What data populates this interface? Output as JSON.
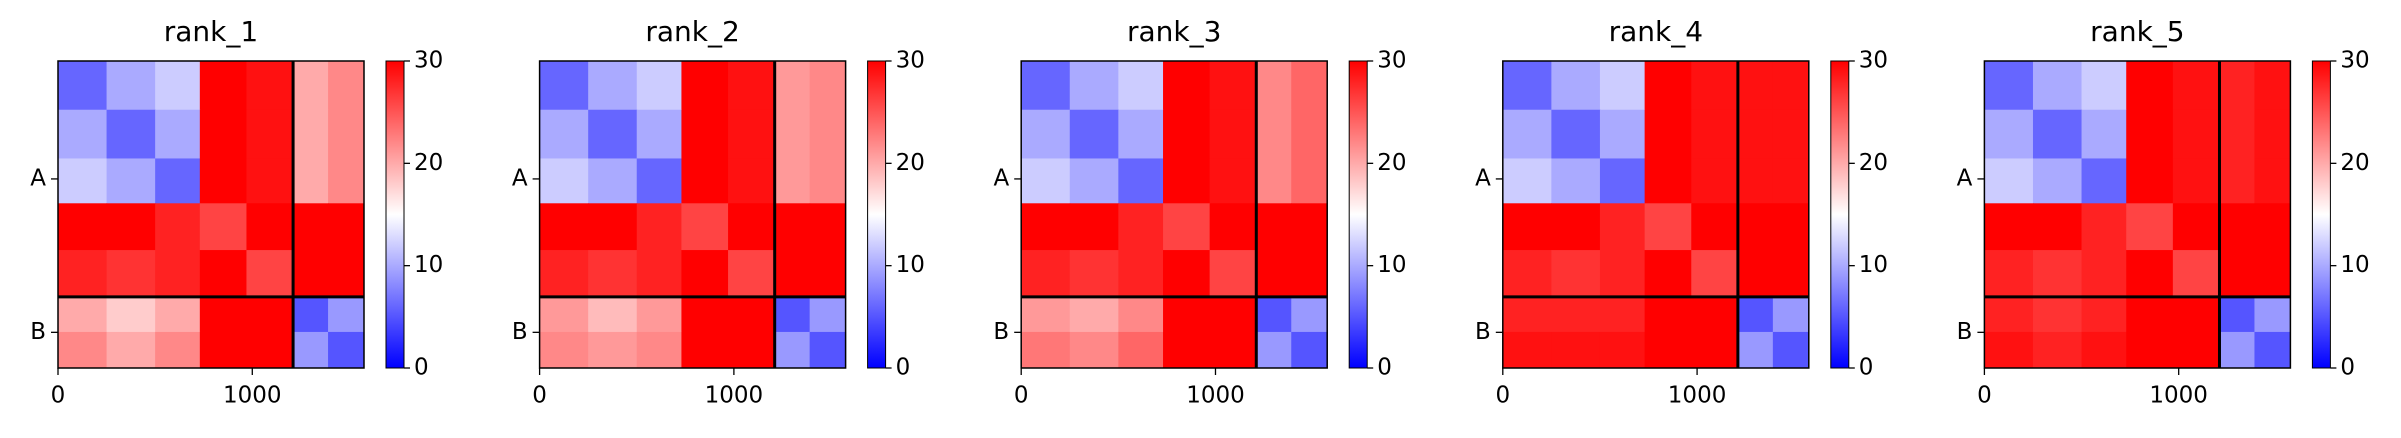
{
  "chart_data": [
    {
      "type": "heatmap",
      "title": "rank_1",
      "colormap": "bwr",
      "clim": [
        0,
        30
      ],
      "cticks": [
        0,
        10,
        20,
        30
      ],
      "xlim": [
        0,
        1575
      ],
      "ylim": [
        1575,
        0
      ],
      "xticks": [
        0,
        1000
      ],
      "yticks": [
        {
          "value": 605,
          "label": "A"
        },
        {
          "value": 1392,
          "label": "B"
        }
      ],
      "chain_boundaries": [
        1210
      ],
      "bins": [
        0,
        250,
        500,
        730,
        970,
        1210,
        1390,
        1575
      ],
      "values": [
        [
          6,
          10,
          12,
          30,
          29,
          20,
          22
        ],
        [
          10,
          6,
          10,
          30,
          29,
          20,
          22
        ],
        [
          12,
          10,
          6,
          30,
          29,
          20,
          22
        ],
        [
          30,
          30,
          28,
          26,
          30,
          30,
          30
        ],
        [
          28,
          27,
          28,
          30,
          26,
          30,
          30
        ],
        [
          20,
          18,
          20,
          30,
          30,
          5,
          9
        ],
        [
          22,
          20,
          22,
          30,
          30,
          9,
          5
        ]
      ]
    },
    {
      "type": "heatmap",
      "title": "rank_2",
      "colormap": "bwr",
      "clim": [
        0,
        30
      ],
      "cticks": [
        0,
        10,
        20,
        30
      ],
      "xlim": [
        0,
        1575
      ],
      "ylim": [
        1575,
        0
      ],
      "xticks": [
        0,
        1000
      ],
      "yticks": [
        {
          "value": 605,
          "label": "A"
        },
        {
          "value": 1392,
          "label": "B"
        }
      ],
      "chain_boundaries": [
        1210
      ],
      "bins": [
        0,
        250,
        500,
        730,
        970,
        1210,
        1390,
        1575
      ],
      "values": [
        [
          6,
          10,
          12,
          30,
          29,
          21,
          22
        ],
        [
          10,
          6,
          10,
          30,
          29,
          21,
          22
        ],
        [
          12,
          10,
          6,
          30,
          29,
          21,
          22
        ],
        [
          30,
          30,
          28,
          26,
          30,
          30,
          30
        ],
        [
          28,
          27,
          28,
          30,
          26,
          30,
          30
        ],
        [
          21,
          19,
          21,
          30,
          30,
          5,
          9
        ],
        [
          22,
          21,
          22,
          30,
          30,
          9,
          5
        ]
      ]
    },
    {
      "type": "heatmap",
      "title": "rank_3",
      "colormap": "bwr",
      "clim": [
        0,
        30
      ],
      "cticks": [
        0,
        10,
        20,
        30
      ],
      "xlim": [
        0,
        1575
      ],
      "ylim": [
        1575,
        0
      ],
      "xticks": [
        0,
        1000
      ],
      "yticks": [
        {
          "value": 605,
          "label": "A"
        },
        {
          "value": 1392,
          "label": "B"
        }
      ],
      "chain_boundaries": [
        1210
      ],
      "bins": [
        0,
        250,
        500,
        730,
        970,
        1210,
        1390,
        1575
      ],
      "values": [
        [
          6,
          10,
          12,
          30,
          29,
          22,
          24
        ],
        [
          10,
          6,
          10,
          30,
          29,
          22,
          24
        ],
        [
          12,
          10,
          6,
          30,
          29,
          22,
          24
        ],
        [
          30,
          30,
          28,
          26,
          30,
          30,
          30
        ],
        [
          28,
          27,
          28,
          30,
          26,
          30,
          30
        ],
        [
          21,
          20,
          22,
          30,
          30,
          5,
          9
        ],
        [
          23,
          22,
          24,
          30,
          30,
          9,
          5
        ]
      ]
    },
    {
      "type": "heatmap",
      "title": "rank_4",
      "colormap": "bwr",
      "clim": [
        0,
        30
      ],
      "cticks": [
        0,
        10,
        20,
        30
      ],
      "xlim": [
        0,
        1575
      ],
      "ylim": [
        1575,
        0
      ],
      "xticks": [
        0,
        1000
      ],
      "yticks": [
        {
          "value": 605,
          "label": "A"
        },
        {
          "value": 1392,
          "label": "B"
        }
      ],
      "chain_boundaries": [
        1210
      ],
      "bins": [
        0,
        250,
        500,
        730,
        970,
        1210,
        1390,
        1575
      ],
      "values": [
        [
          6,
          10,
          12,
          30,
          29,
          29,
          29
        ],
        [
          10,
          6,
          10,
          30,
          29,
          29,
          29
        ],
        [
          12,
          10,
          6,
          30,
          29,
          29,
          29
        ],
        [
          30,
          30,
          28,
          26,
          30,
          30,
          30
        ],
        [
          28,
          27,
          28,
          30,
          26,
          30,
          30
        ],
        [
          28,
          28,
          28,
          30,
          30,
          5,
          9
        ],
        [
          29,
          29,
          29,
          30,
          30,
          9,
          5
        ]
      ]
    },
    {
      "type": "heatmap",
      "title": "rank_5",
      "colormap": "bwr",
      "clim": [
        0,
        30
      ],
      "cticks": [
        0,
        10,
        20,
        30
      ],
      "xlim": [
        0,
        1575
      ],
      "ylim": [
        1575,
        0
      ],
      "xticks": [
        0,
        1000
      ],
      "yticks": [
        {
          "value": 605,
          "label": "A"
        },
        {
          "value": 1392,
          "label": "B"
        }
      ],
      "chain_boundaries": [
        1210
      ],
      "bins": [
        0,
        250,
        500,
        730,
        970,
        1210,
        1390,
        1575
      ],
      "values": [
        [
          6,
          10,
          12,
          30,
          29,
          28,
          29
        ],
        [
          10,
          6,
          10,
          30,
          29,
          28,
          29
        ],
        [
          12,
          10,
          6,
          30,
          29,
          28,
          29
        ],
        [
          30,
          30,
          28,
          26,
          30,
          30,
          30
        ],
        [
          28,
          27,
          28,
          30,
          26,
          30,
          30
        ],
        [
          28,
          27,
          28,
          30,
          30,
          5,
          9
        ],
        [
          29,
          28,
          29,
          30,
          30,
          9,
          5
        ]
      ]
    }
  ]
}
